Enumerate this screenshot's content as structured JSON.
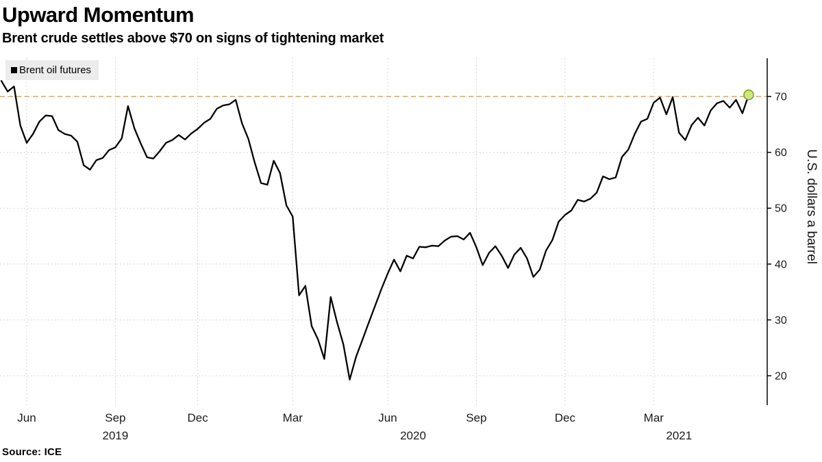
{
  "header": {
    "title": "Upward Momentum",
    "subtitle": "Brent crude settles above $70 on signs of tightening market"
  },
  "legend": {
    "marker_color": "#000000",
    "label": "Brent oil futures"
  },
  "footer": {
    "source": "Source: ICE"
  },
  "chart_data": {
    "type": "line",
    "series_name": "Brent oil futures",
    "y_axis_label": "U.S. dollars a barrel",
    "line_color": "#000000",
    "grid_color": "#c9c9c9",
    "ylim": [
      14.5,
      77
    ],
    "y_ticks": [
      20,
      30,
      40,
      50,
      60,
      70
    ],
    "reference_line": {
      "value": 70,
      "color": "#ef9f45",
      "style": "dashed"
    },
    "last_point_marker": {
      "fill": "#cfe87b",
      "stroke": "#7fa32a"
    },
    "values": [
      72.8,
      70.9,
      71.8,
      64.8,
      61.7,
      63.3,
      65.5,
      66.6,
      66.5,
      64.0,
      63.3,
      63.0,
      61.9,
      57.7,
      56.9,
      58.6,
      59.0,
      60.4,
      60.9,
      62.5,
      68.3,
      64.3,
      61.6,
      59.1,
      58.9,
      60.2,
      61.7,
      62.2,
      63.1,
      62.3,
      63.4,
      64.2,
      65.3,
      66.0,
      67.8,
      68.4,
      68.6,
      69.4,
      65.2,
      62.4,
      58.2,
      54.5,
      54.2,
      58.5,
      56.3,
      50.5,
      48.5,
      34.4,
      36.1,
      28.9,
      26.5,
      23.0,
      34.1,
      29.6,
      25.6,
      19.3,
      23.4,
      26.4,
      29.5,
      32.5,
      35.5,
      38.3,
      40.8,
      38.7,
      41.5,
      41.0,
      43.1,
      43.0,
      43.3,
      43.2,
      44.2,
      44.9,
      45.0,
      44.4,
      45.6,
      43.0,
      39.8,
      42.0,
      43.2,
      41.5,
      39.3,
      41.7,
      42.9,
      41.0,
      37.7,
      39.0,
      42.4,
      44.3,
      47.6,
      48.8,
      49.6,
      51.5,
      51.2,
      51.7,
      52.8,
      55.7,
      55.2,
      55.5,
      59.2,
      60.5,
      63.3,
      65.5,
      66.0,
      68.9,
      69.8,
      66.8,
      69.9,
      63.5,
      62.2,
      64.9,
      66.2,
      64.8,
      67.5,
      68.8,
      69.2,
      68.0,
      69.4,
      67.0,
      70.3
    ],
    "x_ticks": [
      {
        "i": 4,
        "label": "Jun"
      },
      {
        "i": 18,
        "label": "Sep"
      },
      {
        "i": 31,
        "label": "Dec"
      },
      {
        "i": 46,
        "label": "Mar"
      },
      {
        "i": 61,
        "label": "Jun"
      },
      {
        "i": 75,
        "label": "Sep"
      },
      {
        "i": 89,
        "label": "Dec"
      },
      {
        "i": 103,
        "label": "Mar"
      }
    ],
    "year_labels": [
      {
        "i": 18,
        "label": "2019"
      },
      {
        "i": 65,
        "label": "2020"
      },
      {
        "i": 107,
        "label": "2021"
      }
    ]
  }
}
